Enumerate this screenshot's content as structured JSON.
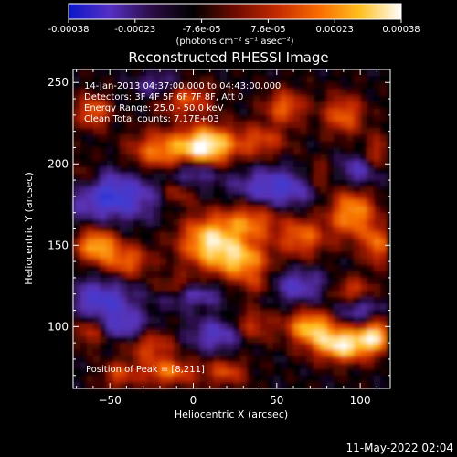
{
  "chart_data": {
    "type": "heatmap",
    "title": "Reconstructed RHESSI Image",
    "xlabel": "Heliocentric X (arcsec)",
    "ylabel": "Heliocentric Y (arcsec)",
    "xlim": [
      -72,
      118
    ],
    "ylim": [
      62,
      258
    ],
    "x_ticks": [
      -50,
      0,
      50,
      100
    ],
    "y_ticks": [
      100,
      150,
      200,
      250
    ],
    "colorbar": {
      "ticks": [
        "-0.00038",
        "-0.00023",
        "-7.6e-05",
        "7.6e-05",
        "0.00023",
        "0.00038"
      ],
      "range": [
        -0.00038,
        0.00038
      ],
      "unit_label": "(photons cm⁻² s⁻¹ asec⁻²)",
      "colors": [
        "#0b16c8",
        "#5530c4",
        "#2a0c44",
        "#000000",
        "#6e0a00",
        "#c22a00",
        "#f86a00",
        "#ffbe1e",
        "#ffffff"
      ]
    },
    "annotations": [
      "14-Jan-2013 04:37:00.000 to 04:43:00.000",
      "Detectors: 3F 4F 5F 6F 7F 8F, Att 0",
      "Energy Range: 25.0 - 50.0 keV",
      "Clean     Total counts: 7.17E+03"
    ],
    "peak_label": "Position of Peak = [8,211]",
    "peak": [
      8,
      211
    ],
    "grid": false
  },
  "footer": {
    "timestamp": "11-May-2022 02:04"
  }
}
